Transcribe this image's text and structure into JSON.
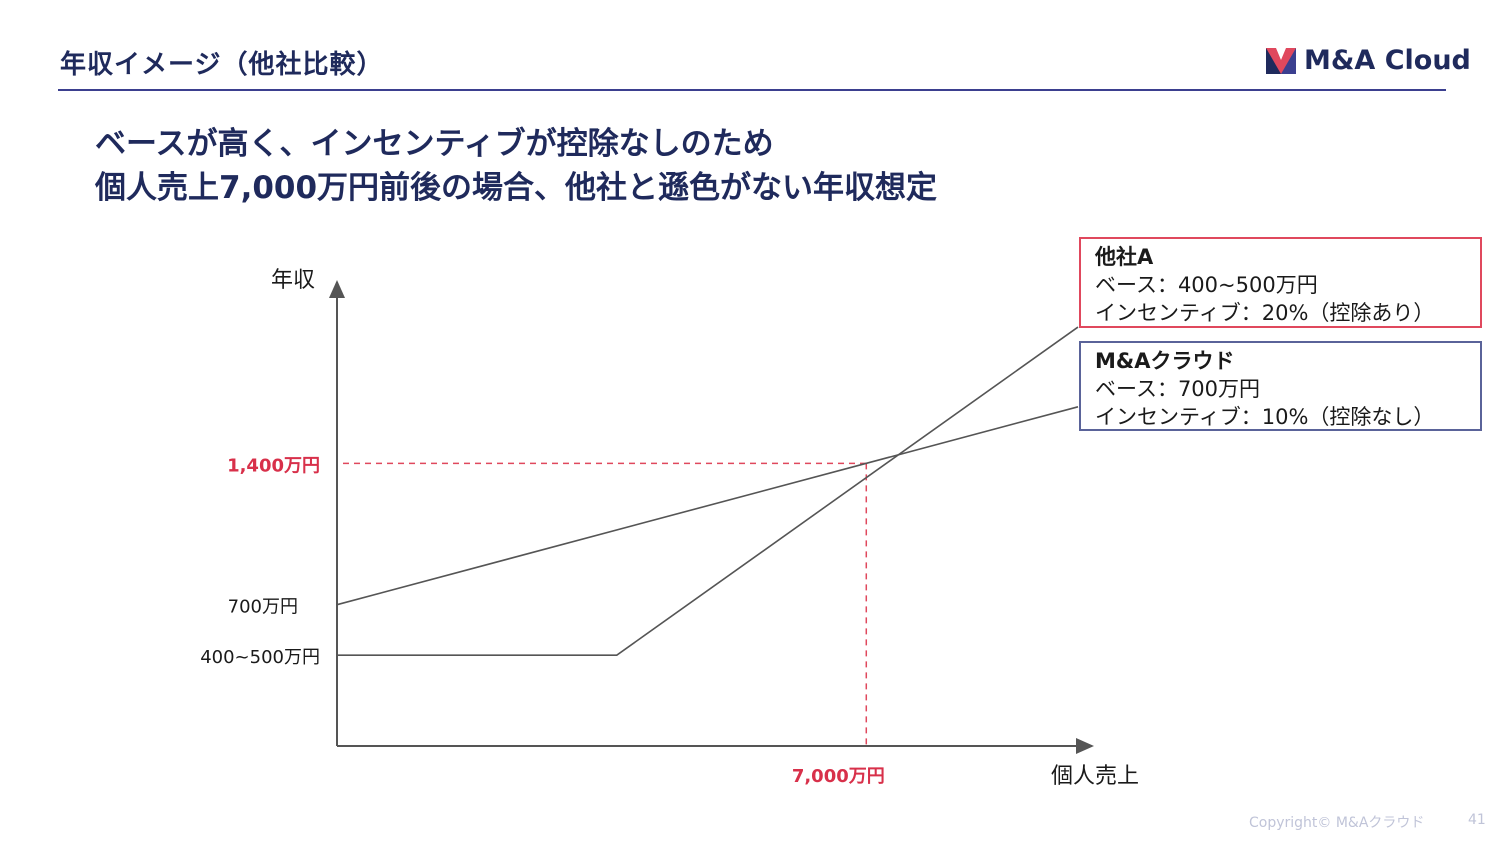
{
  "header": {
    "title": "年収イメージ（他社比較）",
    "logo_text": "M&A Cloud"
  },
  "headline": {
    "line1": "ベースが高く、インセンティブが控除なしのため",
    "line2": "個人売上7,000万円前後の場合、他社と遜色がない年収想定"
  },
  "chart_data": {
    "type": "line",
    "xlabel": "個人売上",
    "ylabel": "年収",
    "x_ticks": [
      {
        "value": 7000,
        "label": "7,000万円",
        "highlight": true
      }
    ],
    "y_ticks": [
      {
        "value": 1400,
        "label": "1,400万円",
        "highlight": true
      },
      {
        "value": 700,
        "label": "700万円",
        "highlight": false
      },
      {
        "value": 450,
        "label": "400~500万円",
        "highlight": false
      }
    ],
    "xlim": [
      0,
      9800
    ],
    "ylim": [
      0,
      2100
    ],
    "series": [
      {
        "name": "M&Aクラウド",
        "x": [
          0,
          9800
        ],
        "y": [
          700,
          1680
        ]
      },
      {
        "name": "他社A",
        "x": [
          0,
          3700,
          9800
        ],
        "y": [
          450,
          450,
          2075
        ]
      }
    ],
    "reference_point": {
      "x": 7000,
      "y": 1400
    },
    "colors": {
      "line": "#555555",
      "axis": "#555555",
      "reference": "#e0485d",
      "highlight_text": "#d8304a"
    }
  },
  "legend": {
    "company_a": {
      "title": "他社A",
      "base": "ベース：400~500万円",
      "incentive": "インセンティブ：20%（控除あり）"
    },
    "ma_cloud": {
      "title": "M&Aクラウド",
      "base": "ベース：700万円",
      "incentive": "インセンティブ：10%（控除なし）"
    }
  },
  "footer": {
    "copyright": "Copyright© M&Aクラウド",
    "page": "41"
  }
}
